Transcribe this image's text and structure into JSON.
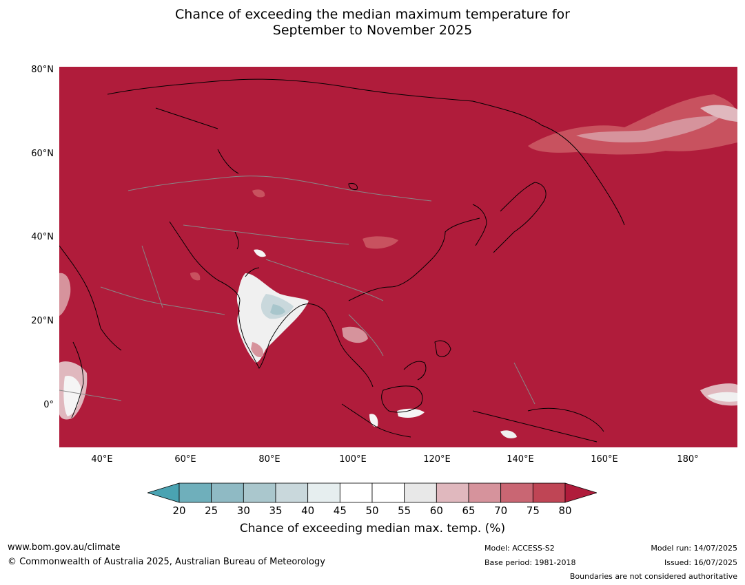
{
  "title": {
    "line1": "Chance of exceeding the median maximum temperature for",
    "line2": "September to November 2025"
  },
  "map": {
    "background_color": "#b01c3b",
    "lat_labels": [
      "80°N",
      "60°N",
      "40°N",
      "20°N",
      "0°"
    ],
    "lon_labels": [
      "40°E",
      "60°E",
      "80°E",
      "100°E",
      "120°E",
      "140°E",
      "160°E",
      "180°"
    ],
    "features": [
      {
        "name": "india-near-median-region",
        "color": "#f0f0f0"
      },
      {
        "name": "india-below-median-core",
        "color": "#a8c6cc"
      },
      {
        "name": "siberia-lower-chance-band",
        "color": "#c8525f"
      },
      {
        "name": "east-africa-near-median-patch",
        "color": "#f5f5f5"
      },
      {
        "name": "borneo-near-median-patch",
        "color": "#f5f5f5"
      }
    ]
  },
  "colorbar": {
    "ticks": [
      "20",
      "25",
      "30",
      "35",
      "40",
      "45",
      "50",
      "55",
      "60",
      "65",
      "70",
      "75",
      "80"
    ],
    "colors": [
      "#6fafbb",
      "#8fbac4",
      "#aac7cd",
      "#c9d8dc",
      "#e6eeef",
      "#ffffff",
      "#ffffff",
      "#e8e8e8",
      "#e0b8be",
      "#d6939c",
      "#c96673",
      "#bf4555"
    ],
    "under_color": "#4aa3b2",
    "over_color": "#b01c3b",
    "label": "Chance of exceeding median max. temp. (%)"
  },
  "footer": {
    "url": "www.bom.gov.au/climate",
    "copyright": "© Commonwealth of Australia 2025, Australian Bureau of Meteorology",
    "model": "Model: ACCESS-S2",
    "base_period": "Base period: 1981-2018",
    "model_run": "Model run: 14/07/2025",
    "issued": "Issued: 16/07/2025",
    "disclaimer": "Boundaries are not considered authoritative"
  }
}
